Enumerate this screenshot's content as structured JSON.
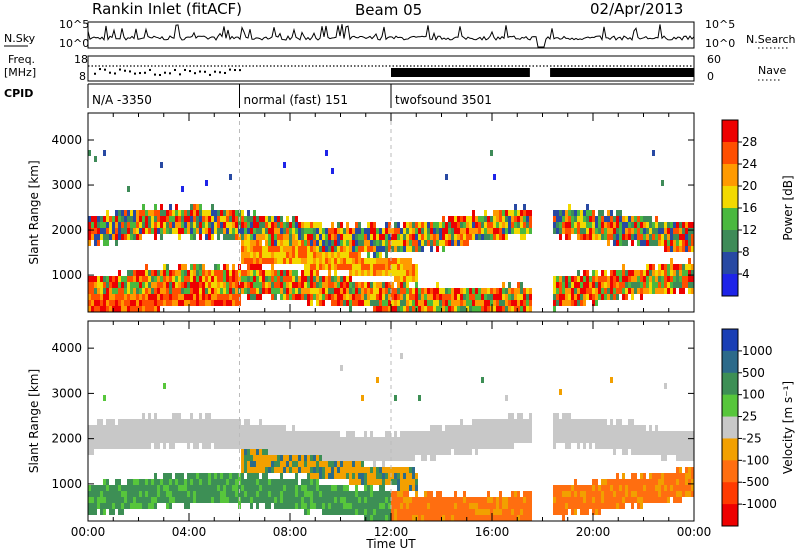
{
  "header": {
    "station": "Rankin Inlet (fitACF)",
    "beam": "Beam 05",
    "date": "02/Apr/2013"
  },
  "summary": {
    "nsky_label": "N.Sky",
    "nsky_ticks": [
      "10^5",
      "10^0"
    ],
    "nsearch_label": "N.Search",
    "freq_label_1": "Freq.",
    "freq_label_2": "[MHz]",
    "freq_ticks": [
      "8",
      "18"
    ],
    "nave_label": "Nave",
    "nave_ticks": [
      "60",
      "0"
    ],
    "cpid_label": "CPID",
    "cpid_segments": [
      {
        "label": "N/A -3350",
        "start_hour": 0,
        "end_hour": 6
      },
      {
        "label": "normal (fast) 151",
        "start_hour": 6,
        "end_hour": 12
      },
      {
        "label": "twofsound 3501",
        "start_hour": 12,
        "end_hour": 24
      }
    ]
  },
  "chart_data": [
    {
      "type": "heatmap",
      "name": "power",
      "ylabel": "Slant Range [km]",
      "xlabel": "",
      "xlim_hours": [
        0,
        24
      ],
      "ylim": [
        180,
        4600
      ],
      "y_ticks": [
        1000,
        2000,
        3000,
        4000
      ],
      "colorbar_label": "Power [dB]",
      "colorbar_ticks": [
        "28",
        "24",
        "20",
        "16",
        "12",
        "8",
        "4"
      ],
      "colorbar_colors": [
        "#ee0000",
        "#ff4f00",
        "#ff9a00",
        "#f3d900",
        "#4ab83f",
        "#3e8b58",
        "#2849a3",
        "#1e24e8"
      ]
    },
    {
      "type": "heatmap",
      "name": "velocity",
      "ylabel": "Slant Range [km]",
      "xlabel": "Time UT",
      "xlim_hours": [
        0,
        24
      ],
      "ylim": [
        180,
        4600
      ],
      "y_ticks": [
        1000,
        2000,
        3000,
        4000
      ],
      "x_ticks": [
        "00:00",
        "04:00",
        "08:00",
        "12:00",
        "16:00",
        "20:00",
        "00:00"
      ],
      "colorbar_label": "Velocity [m s⁻¹]",
      "colorbar_ticks": [
        "1000",
        "500",
        "100",
        "25",
        "-25",
        "-100",
        "-500",
        "-1000"
      ],
      "colorbar_colors": [
        "#1a3fb5",
        "#2c6a8a",
        "#3d8f55",
        "#57c63b",
        "#c8c8c8",
        "#f2a000",
        "#ff6e10",
        "#ff3a00",
        "#ee0000"
      ]
    }
  ]
}
